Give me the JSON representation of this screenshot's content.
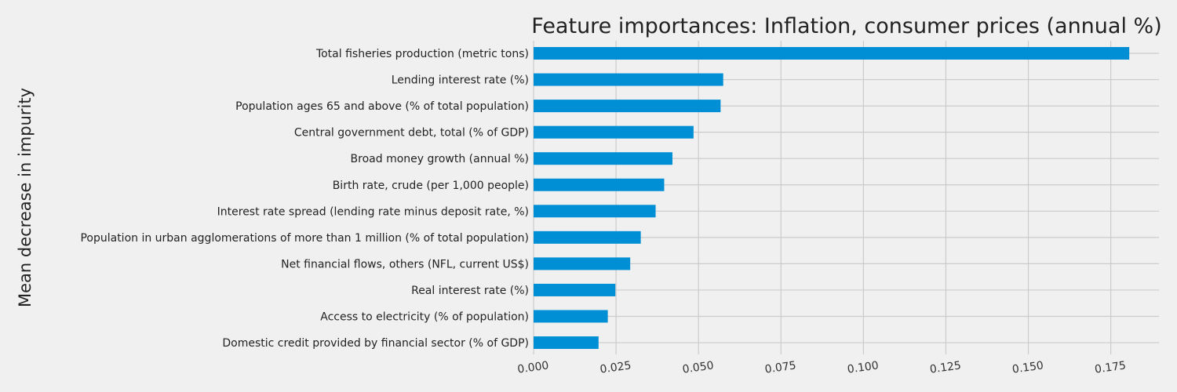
{
  "chart_data": {
    "type": "bar",
    "orientation": "horizontal",
    "title": "Feature importances: Inflation, consumer prices (annual %)",
    "xlabel": "",
    "ylabel": "Mean decrease in impurity",
    "categories": [
      "Total fisheries production (metric tons)",
      "Lending interest rate (%)",
      "Population ages 65 and above (% of total population)",
      "Central government debt, total (% of GDP)",
      "Broad money growth (annual %)",
      "Birth rate, crude (per 1,000 people)",
      "Interest rate spread (lending rate minus deposit rate, %)",
      "Population in urban agglomerations of more than 1 million (% of total population)",
      "Net financial flows, others (NFL, current US$)",
      "Real interest rate (%)",
      "Access to electricity (% of population)",
      "Domestic credit provided by financial sector (% of GDP)"
    ],
    "values": [
      0.1806,
      0.0575,
      0.0567,
      0.0485,
      0.0421,
      0.0396,
      0.037,
      0.0325,
      0.0293,
      0.0248,
      0.0225,
      0.0197
    ],
    "xlim": [
      0,
      0.1896
    ],
    "xticks": [
      0.0,
      0.025,
      0.05,
      0.075,
      0.1,
      0.125,
      0.15,
      0.175
    ],
    "xtick_labels": [
      "0.000",
      "0.025",
      "0.050",
      "0.075",
      "0.100",
      "0.125",
      "0.150",
      "0.175"
    ],
    "grid": true,
    "bar_color": "#008fd5",
    "background_color": "#f0f0f0",
    "grid_color": "#cbcbcb"
  }
}
